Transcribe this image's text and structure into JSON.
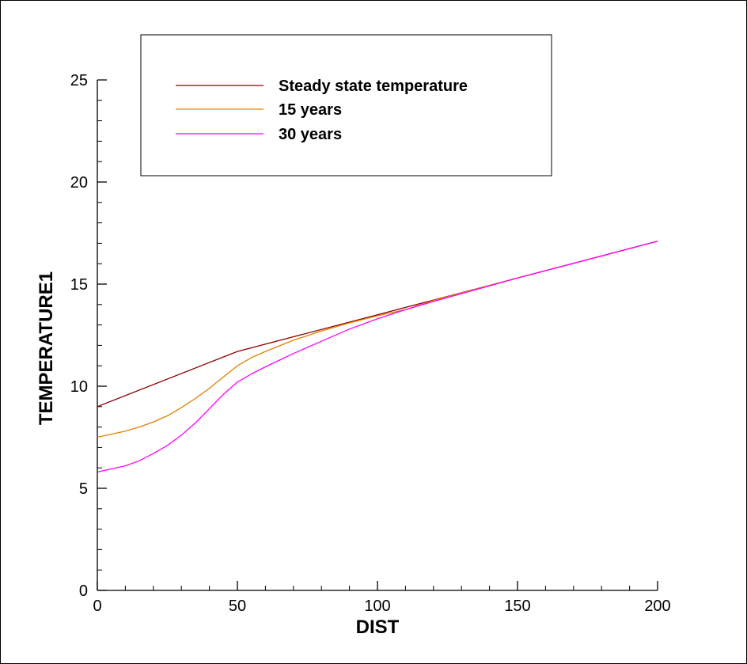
{
  "chart_data": {
    "type": "line",
    "title": "",
    "xlabel": "DIST",
    "ylabel": "TEMPERATURE1",
    "xlim": [
      0,
      200
    ],
    "ylim": [
      0,
      25
    ],
    "x_ticks": [
      0,
      50,
      100,
      150,
      200
    ],
    "x_tick_labels": [
      "0",
      "50",
      "100",
      "150",
      "200"
    ],
    "y_ticks": [
      0,
      5,
      10,
      15,
      20,
      25
    ],
    "y_tick_labels": [
      "0",
      "5",
      "10",
      "15",
      "20",
      "25"
    ],
    "x_minor_step": 10,
    "y_minor_step": 1,
    "grid": false,
    "legend_position": "top",
    "series": [
      {
        "name": "Steady state temperature",
        "color": "#8b0000",
        "x": [
          0,
          50,
          100,
          150,
          200
        ],
        "y": [
          9.0,
          11.7,
          13.5,
          15.3,
          17.1
        ]
      },
      {
        "name": "15 years",
        "color": "#e08000",
        "x": [
          0,
          5,
          10,
          15,
          20,
          25,
          30,
          35,
          40,
          45,
          50,
          55,
          60,
          70,
          80,
          90,
          100,
          110,
          120,
          150,
          200
        ],
        "y": [
          7.5,
          7.65,
          7.8,
          8.0,
          8.25,
          8.55,
          8.95,
          9.4,
          9.9,
          10.45,
          11.0,
          11.4,
          11.7,
          12.25,
          12.7,
          13.1,
          13.45,
          13.75,
          14.2,
          15.3,
          17.1
        ]
      },
      {
        "name": "30 years",
        "color": "#ff00ff",
        "x": [
          0,
          5,
          10,
          15,
          20,
          25,
          30,
          35,
          40,
          45,
          50,
          55,
          60,
          70,
          80,
          90,
          100,
          110,
          120,
          150,
          200
        ],
        "y": [
          5.8,
          5.95,
          6.1,
          6.35,
          6.7,
          7.1,
          7.6,
          8.2,
          8.9,
          9.6,
          10.2,
          10.6,
          10.95,
          11.6,
          12.2,
          12.8,
          13.3,
          13.75,
          14.15,
          15.3,
          17.1
        ]
      }
    ]
  }
}
